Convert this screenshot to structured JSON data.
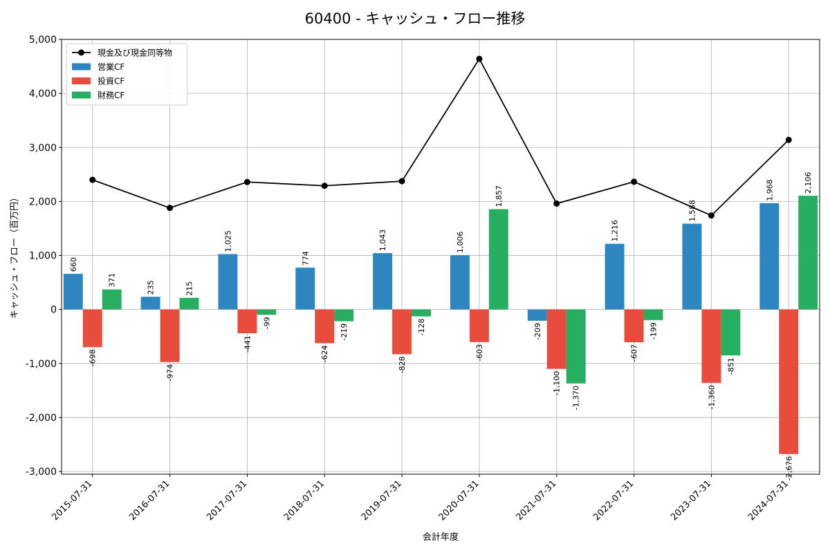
{
  "chart_data": {
    "type": "bar",
    "title": "60400 - キャッシュ・フロー推移",
    "xlabel": "会計年度",
    "ylabel": "キャッシュ・フロー（百万円）",
    "ylim": [
      -3050,
      5000
    ],
    "yticks": [
      -3000,
      -2000,
      -1000,
      0,
      1000,
      2000,
      3000,
      4000,
      5000
    ],
    "ytick_labels": [
      "-3,000",
      "-2,000",
      "-1,000",
      "0",
      "1,000",
      "2,000",
      "3,000",
      "4,000",
      "5,000"
    ],
    "grid": true,
    "legend_position": "top-left",
    "categories": [
      "2015-07-31",
      "2016-07-31",
      "2017-07-31",
      "2018-07-31",
      "2019-07-31",
      "2020-07-31",
      "2021-07-31",
      "2022-07-31",
      "2023-07-31",
      "2024-07-31"
    ],
    "series": [
      {
        "name": "営業CF",
        "kind": "bar",
        "color": "#2e86c1",
        "values": [
          660,
          235,
          1025,
          774,
          1043,
          1006,
          -209,
          1216,
          1588,
          1968
        ],
        "labels": [
          "660",
          "235",
          "1,025",
          "774",
          "1,043",
          "1,006",
          "-209",
          "1,216",
          "1,588",
          "1,968"
        ]
      },
      {
        "name": "投資CF",
        "kind": "bar",
        "color": "#e74c3c",
        "values": [
          -698,
          -974,
          -441,
          -624,
          -828,
          -603,
          -1100,
          -607,
          -1360,
          -2676
        ],
        "labels": [
          "-698",
          "-974",
          "-441",
          "-624",
          "-828",
          "-603",
          "-1,100",
          "-607",
          "-1,360",
          "-2,676"
        ]
      },
      {
        "name": "財務CF",
        "kind": "bar",
        "color": "#27ae60",
        "values": [
          371,
          215,
          -99,
          -219,
          -128,
          1857,
          -1370,
          -199,
          -851,
          2106
        ],
        "labels": [
          "371",
          "215",
          "-99",
          "-219",
          "-128",
          "1,857",
          "-1,370",
          "-199",
          "-851",
          "2,106"
        ]
      },
      {
        "name": "現金及び現金同等物",
        "kind": "line",
        "color": "#000000",
        "values": [
          2400,
          1880,
          2360,
          2290,
          2375,
          4640,
          1960,
          2365,
          1740,
          3140
        ]
      }
    ]
  }
}
